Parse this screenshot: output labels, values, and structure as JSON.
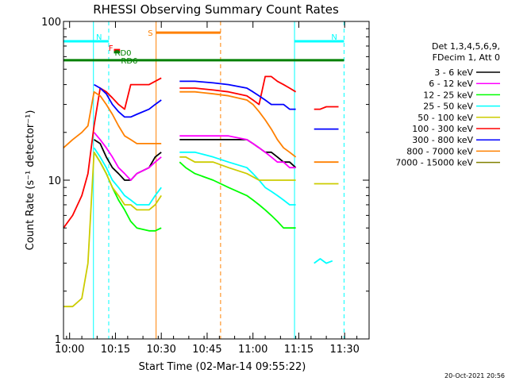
{
  "chart_data": {
    "type": "line",
    "title": "RHESSI Observing Summary Count Rates",
    "xlabel": "Start Time (02-Mar-14 09:55:22)",
    "ylabel": "Count Rate (s⁻¹ detector⁻¹)",
    "yscale": "log",
    "ylim": [
      1,
      100
    ],
    "xlim_minutes": [
      -2,
      98
    ],
    "x_ticks": [
      {
        "label": "10:00",
        "m": 0
      },
      {
        "label": "10:15",
        "m": 15
      },
      {
        "label": "10:30",
        "m": 30
      },
      {
        "label": "10:45",
        "m": 45
      },
      {
        "label": "11:00",
        "m": 60
      },
      {
        "label": "11:15",
        "m": 75
      },
      {
        "label": "11:30",
        "m": 90
      }
    ],
    "y_ticks": [
      {
        "label": "1",
        "v": 1
      },
      {
        "label": "10",
        "v": 10
      },
      {
        "label": "100",
        "v": 100
      }
    ],
    "legend_title": [
      "Det 1,3,4,5,6,9,",
      "FDecim 1, Att 0"
    ],
    "legend_placement": "right",
    "timestamp": "20-Oct-2021 20:56",
    "series": [
      {
        "name": "3 - 6 keV",
        "color": "#000000",
        "x": [
          8,
          10,
          12,
          14,
          16,
          18,
          20,
          22,
          26,
          28,
          30,
          34,
          36,
          38,
          41,
          47,
          52,
          58,
          60,
          62,
          64,
          66,
          68,
          70,
          72,
          74
        ],
        "y": [
          18,
          17,
          14,
          12,
          11,
          10,
          10,
          11,
          12,
          14,
          15,
          null,
          18,
          18,
          18,
          18,
          18,
          18,
          17,
          16,
          15,
          15,
          14,
          13,
          13,
          12
        ]
      },
      {
        "name": "6 - 12 keV",
        "color": "#ff00ff",
        "x": [
          8,
          10,
          12,
          14,
          16,
          18,
          20,
          22,
          26,
          28,
          30,
          34,
          36,
          38,
          41,
          47,
          52,
          58,
          60,
          62,
          64,
          66,
          68,
          70,
          72,
          74
        ],
        "y": [
          20,
          18,
          16,
          14,
          12,
          11,
          10,
          11,
          12,
          13,
          14,
          null,
          19,
          19,
          19,
          19,
          19,
          18,
          17,
          16,
          15,
          14,
          13,
          13,
          12,
          12
        ]
      },
      {
        "name": "12 - 25 keV",
        "color": "#00ff00",
        "x": [
          8,
          10,
          12,
          14,
          16,
          18,
          20,
          22,
          26,
          28,
          30,
          34,
          36,
          38,
          41,
          47,
          52,
          58,
          60,
          62,
          64,
          66,
          68,
          70,
          72,
          74
        ],
        "y": [
          15,
          13,
          11,
          9,
          7.5,
          6.5,
          5.5,
          5,
          4.8,
          4.8,
          5,
          null,
          13,
          12,
          11,
          10,
          9,
          8,
          7.5,
          7,
          6.5,
          6,
          5.5,
          5,
          5,
          5
        ]
      },
      {
        "name": "25 - 50 keV",
        "color": "#00ffff",
        "x": [
          8,
          10,
          12,
          14,
          16,
          18,
          20,
          22,
          26,
          28,
          30,
          34,
          36,
          38,
          41,
          47,
          52,
          58,
          60,
          62,
          64,
          66,
          68,
          70,
          72,
          74,
          78,
          80,
          82,
          84,
          86
        ],
        "y": [
          16,
          14,
          12,
          10,
          9,
          8,
          7.5,
          7,
          7,
          8,
          9,
          null,
          15,
          15,
          15,
          14,
          13,
          12,
          11,
          10,
          9,
          8.5,
          8,
          7.5,
          7,
          7,
          null,
          3,
          3.2,
          3,
          3.1
        ]
      },
      {
        "name": "50 - 100 keV",
        "color": "#cccc00",
        "x": [
          -2,
          1,
          4,
          6,
          8,
          10,
          12,
          14,
          16,
          18,
          20,
          22,
          26,
          28,
          30,
          34,
          36,
          38,
          41,
          47,
          52,
          58,
          60,
          62,
          64,
          66,
          68,
          70,
          72,
          74,
          78,
          80,
          82,
          84,
          86,
          88
        ],
        "y": [
          1.6,
          1.6,
          1.8,
          3,
          15,
          13,
          11,
          9,
          8,
          7,
          7,
          6.5,
          6.5,
          7,
          8,
          null,
          14,
          14,
          13,
          13,
          12,
          11,
          10.5,
          10,
          10,
          10,
          10,
          10,
          10,
          10,
          null,
          9.5,
          9.5,
          9.5,
          9.5,
          9.5
        ]
      },
      {
        "name": "100 - 300 keV",
        "color": "#ff0000",
        "x": [
          -2,
          1,
          4,
          6,
          8,
          10,
          12,
          14,
          16,
          18,
          20,
          22,
          26,
          28,
          30,
          34,
          36,
          38,
          41,
          47,
          52,
          58,
          60,
          62,
          64,
          66,
          68,
          70,
          72,
          74,
          78,
          80,
          82,
          84,
          86,
          88
        ],
        "y": [
          5,
          6,
          8,
          11,
          22,
          38,
          36,
          33,
          30,
          28,
          40,
          40,
          40,
          42,
          44,
          null,
          38,
          38,
          38,
          37,
          36,
          34,
          32,
          30,
          45,
          45,
          42,
          40,
          38,
          36,
          null,
          28,
          28,
          29,
          29,
          29
        ]
      },
      {
        "name": "300 - 800 keV",
        "color": "#0000ff",
        "x": [
          8,
          10,
          12,
          14,
          16,
          18,
          20,
          22,
          26,
          28,
          30,
          34,
          36,
          38,
          41,
          47,
          52,
          58,
          60,
          62,
          64,
          66,
          68,
          70,
          72,
          74,
          78,
          80,
          82,
          84,
          86,
          88
        ],
        "y": [
          40,
          38,
          35,
          30,
          27,
          25,
          25,
          26,
          28,
          30,
          32,
          null,
          42,
          42,
          42,
          41,
          40,
          38,
          36,
          34,
          32,
          30,
          30,
          30,
          28,
          28,
          null,
          21,
          21,
          21,
          21,
          21
        ]
      },
      {
        "name": "800 - 7000 keV",
        "color": "#ff8000",
        "x": [
          -2,
          1,
          4,
          6,
          8,
          10,
          12,
          14,
          16,
          18,
          20,
          22,
          26,
          28,
          30,
          34,
          36,
          38,
          41,
          47,
          52,
          58,
          60,
          62,
          64,
          66,
          68,
          70,
          72,
          74,
          78,
          80,
          82,
          84,
          86,
          88
        ],
        "y": [
          16,
          18,
          20,
          22,
          36,
          34,
          30,
          26,
          22,
          19,
          18,
          17,
          17,
          17,
          17,
          null,
          36,
          36,
          36,
          35,
          34,
          32,
          30,
          27,
          24,
          21,
          18,
          16,
          15,
          14,
          null,
          13,
          13,
          13,
          13,
          13
        ]
      },
      {
        "name": "7000 - 15000 keV",
        "color": "#808000",
        "x": [
          -2,
          88
        ],
        "y": [
          null,
          null
        ]
      }
    ],
    "annotations": {
      "vertical_lines": [
        {
          "m": 7.8,
          "color": "#00ffff",
          "style": "solid"
        },
        {
          "m": 12.8,
          "color": "#00ffff",
          "style": "dashed"
        },
        {
          "m": 28.3,
          "color": "#ff8000",
          "style": "solid"
        },
        {
          "m": 49.4,
          "color": "#ff8000",
          "style": "dashed"
        },
        {
          "m": 73.6,
          "color": "#00ffff",
          "style": "solid"
        },
        {
          "m": 89.8,
          "color": "#00ffff",
          "style": "dashed"
        }
      ],
      "flag_bars": [
        {
          "label": "N",
          "color": "#00ffff",
          "from": -2,
          "to": 12.8,
          "v": 75
        },
        {
          "label": "N",
          "color": "#00ffff",
          "from": 73.6,
          "to": 89.8,
          "v": 75
        },
        {
          "label": "S",
          "color": "#ff8000",
          "from": 28.3,
          "to": 49.4,
          "v": 85
        },
        {
          "label": "F",
          "color": "#ff0000",
          "from": 14.5,
          "to": 16.5,
          "v": 66
        },
        {
          "label": "RD0",
          "color": "#008000",
          "from": 14.5,
          "to": 16.5,
          "v": 64
        },
        {
          "label": "RD6",
          "color": "#008000",
          "from": -2,
          "to": 89.8,
          "v": 57
        }
      ]
    }
  }
}
